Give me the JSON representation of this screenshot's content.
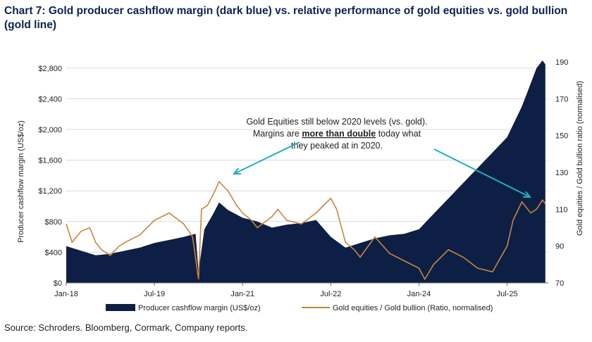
{
  "title": "Chart 7: Gold producer cashflow margin (dark blue) vs. relative performance of gold equities vs. gold bullion (gold line)",
  "source": "Source: Schroders. Bloomberg, Cormark, Company reports.",
  "colors": {
    "area": "#0d1f45",
    "line": "#c8853a",
    "arrow": "#1fb0c0",
    "title": "#0d2350"
  },
  "chart_data": {
    "type": "area",
    "x_ticks": [
      "Jan-18",
      "Jul-19",
      "Jan-21",
      "Jul-22",
      "Jan-24",
      "Jul-25"
    ],
    "x_tick_dates": [
      2018.0,
      2019.5,
      2021.0,
      2022.5,
      2024.0,
      2025.5
    ],
    "xlim": [
      2018.0,
      2026.2
    ],
    "left_axis": {
      "label": "Producer cashflow margin (US$/oz)",
      "ticks": [
        "$0",
        "$400",
        "$800",
        "$1,200",
        "$1,600",
        "$2,000",
        "$2,400",
        "$2,800"
      ],
      "tick_values": [
        0,
        400,
        800,
        1200,
        1600,
        2000,
        2400,
        2800
      ],
      "ylim": [
        0,
        3000
      ]
    },
    "right_axis": {
      "label": "Gold equities / Gold bullion ratio (normalised)",
      "ticks": [
        "70",
        "90",
        "110",
        "130",
        "150",
        "170",
        "190"
      ],
      "tick_values": [
        70,
        90,
        110,
        130,
        150,
        170,
        190
      ],
      "ylim": [
        70,
        195
      ]
    },
    "series": [
      {
        "name": "Producer cashflow margin (US$/oz)",
        "type": "area",
        "axis": "left",
        "x": [
          2018.0,
          2018.25,
          2018.5,
          2018.75,
          2019.0,
          2019.25,
          2019.5,
          2019.75,
          2020.0,
          2020.1,
          2020.2,
          2020.25,
          2020.35,
          2020.5,
          2020.6,
          2020.75,
          2021.0,
          2021.25,
          2021.5,
          2021.75,
          2022.0,
          2022.25,
          2022.5,
          2022.75,
          2023.0,
          2023.25,
          2023.5,
          2023.75,
          2024.0,
          2024.25,
          2024.5,
          2024.75,
          2025.0,
          2025.25,
          2025.5,
          2025.75,
          2025.9,
          2026.0,
          2026.1,
          2026.15
        ],
        "values": [
          480,
          420,
          360,
          380,
          420,
          460,
          520,
          560,
          600,
          620,
          640,
          150,
          700,
          900,
          1050,
          950,
          850,
          800,
          720,
          760,
          780,
          820,
          600,
          460,
          520,
          580,
          620,
          640,
          700,
          900,
          1100,
          1300,
          1500,
          1700,
          1900,
          2300,
          2600,
          2800,
          2900,
          2850
        ]
      },
      {
        "name": "Gold equities / Gold bullion (Ratio, normalised)",
        "type": "line",
        "axis": "right",
        "x": [
          2018.0,
          2018.1,
          2018.25,
          2018.4,
          2018.5,
          2018.6,
          2018.75,
          2018.9,
          2019.0,
          2019.25,
          2019.5,
          2019.75,
          2020.0,
          2020.15,
          2020.25,
          2020.3,
          2020.4,
          2020.5,
          2020.6,
          2020.75,
          2020.9,
          2021.0,
          2021.15,
          2021.25,
          2021.5,
          2021.6,
          2021.75,
          2022.0,
          2022.25,
          2022.5,
          2022.6,
          2022.75,
          2022.9,
          2023.0,
          2023.25,
          2023.5,
          2023.75,
          2024.0,
          2024.1,
          2024.25,
          2024.5,
          2024.75,
          2025.0,
          2025.25,
          2025.5,
          2025.6,
          2025.75,
          2025.9,
          2026.0,
          2026.1,
          2026.15
        ],
        "values": [
          102,
          92,
          98,
          100,
          92,
          88,
          85,
          90,
          92,
          96,
          104,
          108,
          102,
          95,
          72,
          110,
          112,
          118,
          125,
          120,
          112,
          108,
          104,
          100,
          106,
          110,
          104,
          102,
          108,
          116,
          110,
          92,
          88,
          84,
          95,
          86,
          82,
          78,
          72,
          80,
          88,
          84,
          78,
          76,
          90,
          104,
          114,
          108,
          110,
          115,
          113
        ]
      }
    ],
    "annotation": {
      "lines": [
        "Gold Equities still below 2020 levels (vs. gold).",
        "Margins are",
        "more than double",
        "today what",
        "they peaked at in 2020."
      ]
    },
    "legend": {
      "placement": "bottom",
      "entries": [
        "Producer cashflow margin (US$/oz)",
        "Gold equities / Gold bullion (Ratio, normalised)"
      ]
    },
    "grid": true
  }
}
